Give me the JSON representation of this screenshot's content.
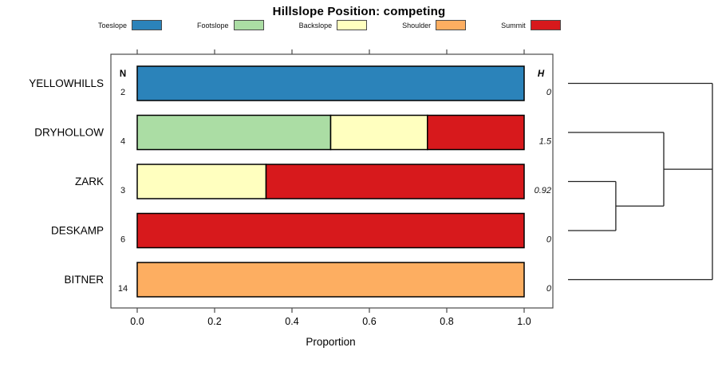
{
  "chart_data": {
    "type": "bar",
    "orientation": "horizontal",
    "stacked": true,
    "title": "Hillslope Position: competing",
    "xlabel": "Proportion",
    "xlim": [
      0,
      1
    ],
    "x_ticks": [
      0.0,
      0.2,
      0.4,
      0.6,
      0.8,
      1.0
    ],
    "x_tick_labels": [
      "0.0",
      "0.2",
      "0.4",
      "0.6",
      "0.8",
      "1.0"
    ],
    "grid": false,
    "legend_position": "top",
    "n_header": "N",
    "h_header": "H",
    "categories": [
      "Toeslope",
      "Footslope",
      "Backslope",
      "Shoulder",
      "Summit"
    ],
    "colors": [
      "#2B83BA",
      "#ABDDA4",
      "#FFFFBF",
      "#FDAE61",
      "#D7191C"
    ],
    "rows": [
      {
        "label": "YELLOWHILLS",
        "n": "2",
        "h": "0",
        "segments": [
          {
            "category": "Toeslope",
            "value": 1.0
          }
        ]
      },
      {
        "label": "DRYHOLLOW",
        "n": "4",
        "h": "1.5",
        "segments": [
          {
            "category": "Footslope",
            "value": 0.5
          },
          {
            "category": "Backslope",
            "value": 0.25
          },
          {
            "category": "Summit",
            "value": 0.25
          }
        ]
      },
      {
        "label": "ZARK",
        "n": "3",
        "h": "0.92",
        "segments": [
          {
            "category": "Backslope",
            "value": 0.333
          },
          {
            "category": "Summit",
            "value": 0.667
          }
        ]
      },
      {
        "label": "DESKAMP",
        "n": "6",
        "h": "0",
        "segments": [
          {
            "category": "Summit",
            "value": 1.0
          }
        ]
      },
      {
        "label": "BITNER",
        "n": "14",
        "h": "0",
        "segments": [
          {
            "category": "Shoulder",
            "value": 1.0
          }
        ]
      }
    ],
    "dendrogram": {
      "note": "x normalized 0-1 left to right, y in row-index units (0=YELLOWHILLS ... 4=BITNER)",
      "segments": [
        {
          "x1": 0,
          "y1": 0,
          "x2": 1.0,
          "y2": 0
        },
        {
          "x1": 0,
          "y1": 1,
          "x2": 0.663,
          "y2": 1
        },
        {
          "x1": 0,
          "y1": 2,
          "x2": 0.331,
          "y2": 2
        },
        {
          "x1": 0,
          "y1": 3,
          "x2": 0.331,
          "y2": 3
        },
        {
          "x1": 0,
          "y1": 4,
          "x2": 1.0,
          "y2": 4
        },
        {
          "x1": 0.331,
          "y1": 2,
          "x2": 0.331,
          "y2": 3
        },
        {
          "x1": 0.331,
          "y1": 2.5,
          "x2": 0.663,
          "y2": 2.5
        },
        {
          "x1": 0.663,
          "y1": 1,
          "x2": 0.663,
          "y2": 2.5
        },
        {
          "x1": 0.663,
          "y1": 1.75,
          "x2": 1.0,
          "y2": 1.75
        },
        {
          "x1": 1.0,
          "y1": 0,
          "x2": 1.0,
          "y2": 4
        }
      ]
    }
  }
}
